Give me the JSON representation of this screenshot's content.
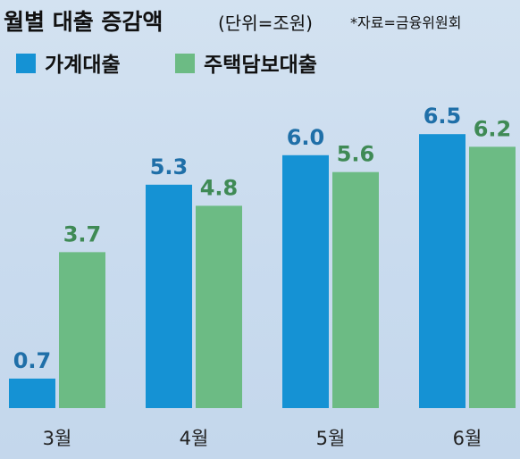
{
  "header": {
    "title": "월별 대출 증감액",
    "unit": "(단위=조원)",
    "source": "*자료=금융위원회"
  },
  "colors": {
    "household": "#1592d4",
    "mortgage": "#6cbb84",
    "household_label": "#1f6fa8",
    "mortgage_label": "#3f8a55"
  },
  "chart_data": {
    "type": "bar",
    "categories": [
      "3월",
      "4월",
      "5월",
      "6월"
    ],
    "series": [
      {
        "name": "가계대출",
        "values": [
          0.7,
          5.3,
          6.0,
          6.5
        ]
      },
      {
        "name": "주택담보대출",
        "values": [
          3.7,
          4.8,
          5.6,
          6.2
        ]
      }
    ],
    "value_labels": [
      [
        "0.7",
        "5.3",
        "6.0",
        "6.5"
      ],
      [
        "3.7",
        "4.8",
        "5.6",
        "6.2"
      ]
    ],
    "ylim": [
      0,
      6.5
    ],
    "legend": "top-left",
    "grid": false
  }
}
